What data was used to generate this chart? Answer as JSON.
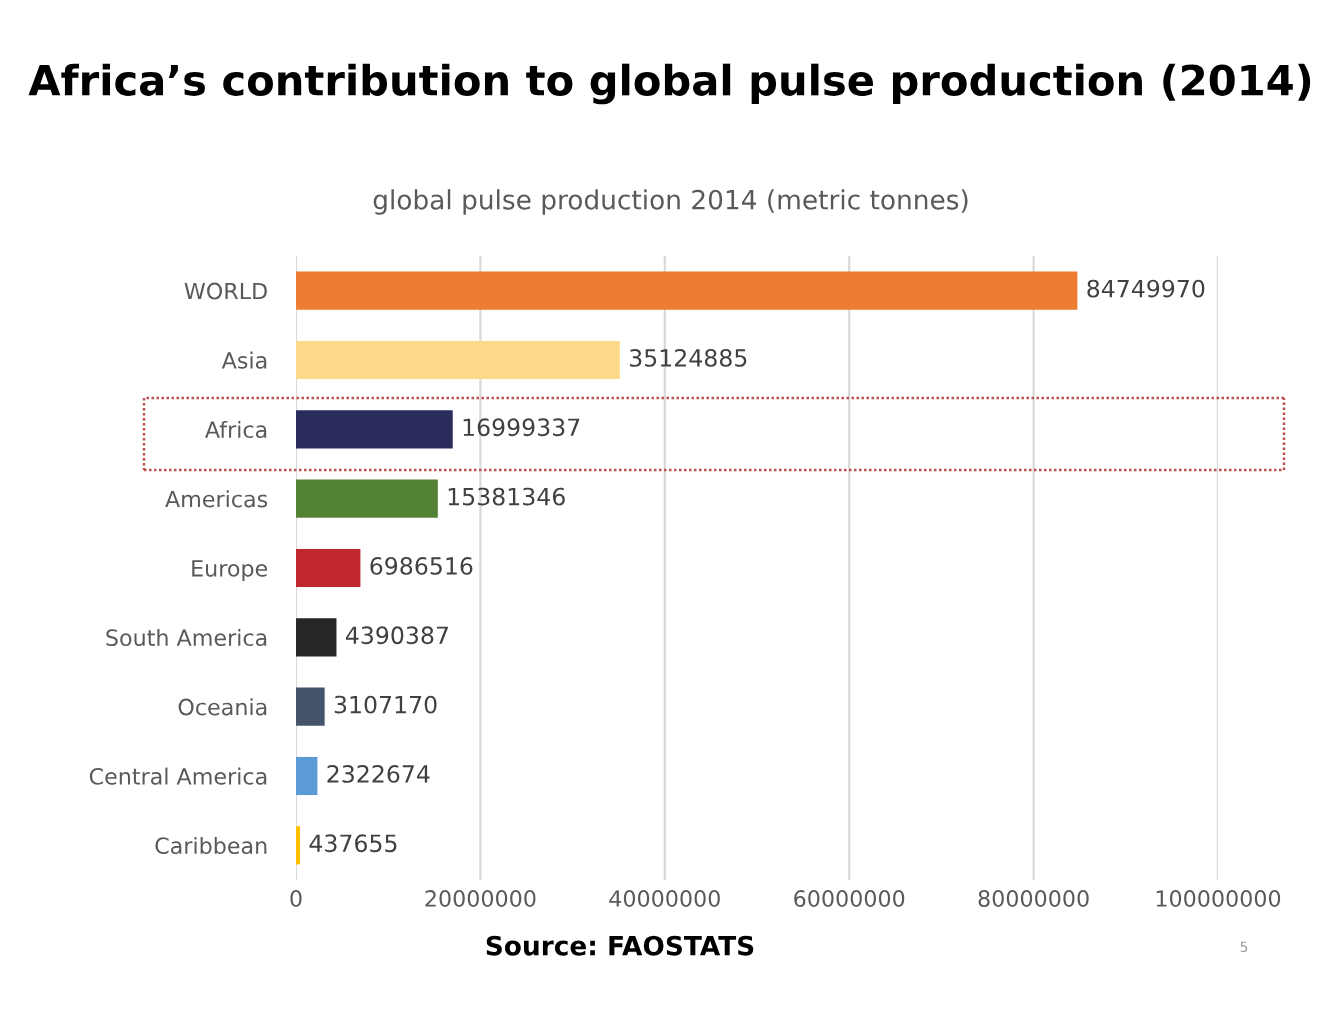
{
  "chart_data": {
    "type": "bar",
    "orientation": "horizontal",
    "title": "Africa’s contribution to global pulse production (2014)",
    "subtitle": "global pulse production 2014 (metric tonnes)",
    "categories": [
      "WORLD",
      "Asia",
      "Africa",
      "Americas",
      "Europe",
      "South America",
      "Oceania",
      "Central America",
      "Caribbean"
    ],
    "values": [
      84749970,
      35124885,
      16999337,
      15381346,
      6986516,
      4390387,
      3107170,
      2322674,
      437655
    ],
    "colors": [
      "#ed7d31",
      "#ffd98a",
      "#2a2c5c",
      "#548235",
      "#c0262d",
      "#262626",
      "#44546a",
      "#5b9bd5",
      "#ffc000"
    ],
    "data_labels": true,
    "xlim": [
      0,
      100000000
    ],
    "xticks": [
      0,
      20000000,
      40000000,
      60000000,
      80000000,
      100000000
    ],
    "grid": "x",
    "legend": false,
    "annotations": [
      "Source: FAOSTATS",
      "5"
    ]
  }
}
